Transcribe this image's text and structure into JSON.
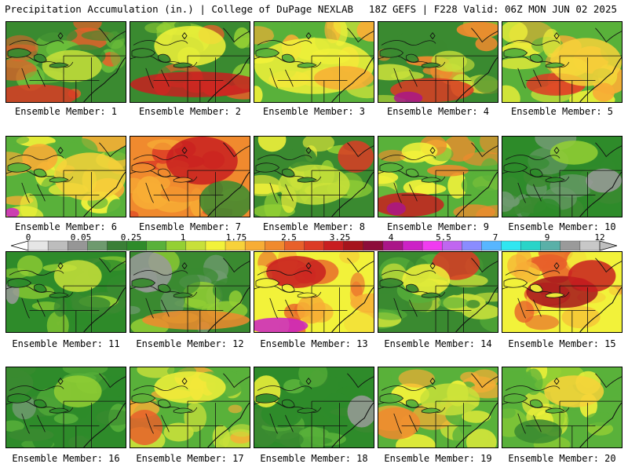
{
  "header": {
    "title": "Precipitation Accumulation (in.) | College of DuPage NEXLAB",
    "run_info": "18Z GEFS | F228 Valid: 06Z MON JUN 02 2025"
  },
  "colorbar": {
    "tick_labels": [
      "0",
      "0.05",
      "0.25",
      "1",
      "1.75",
      "2.5",
      "3.25",
      "4",
      "5.5",
      "7",
      "9",
      "12"
    ],
    "colors": [
      "#e6e6e6",
      "#bdbdbd",
      "#969696",
      "#6e9a6e",
      "#3a7f36",
      "#2e8b2a",
      "#59b13a",
      "#94d034",
      "#c8e03a",
      "#f2f23a",
      "#f7d23a",
      "#f7ad35",
      "#f08a2e",
      "#e8602a",
      "#dc3b25",
      "#c81e20",
      "#a6141c",
      "#8c0d3a",
      "#aa1688",
      "#cc22c6",
      "#f03cf0",
      "#c066f0",
      "#8a8cff",
      "#58b6ff",
      "#30e6f0",
      "#2ad4c8",
      "#5ab0a8",
      "#9a9a9a",
      "#c8c8c8"
    ]
  },
  "panels": [
    {
      "label": "Ensemble Member: 1",
      "palette": [
        "#3a8a30",
        "#6cbf3a",
        "#e8602a"
      ],
      "blobs": [
        [
          0.25,
          0.92,
          0.35,
          0.14,
          "#dc3b25"
        ],
        [
          0.55,
          0.55,
          0.25,
          0.2,
          "#c8e03a"
        ]
      ]
    },
    {
      "label": "Ensemble Member: 2",
      "palette": [
        "#3a8a30",
        "#94d034",
        "#e8602a"
      ],
      "blobs": [
        [
          0.55,
          0.78,
          0.55,
          0.16,
          "#c81e20"
        ],
        [
          0.5,
          0.3,
          0.3,
          0.25,
          "#f2f23a"
        ]
      ]
    },
    {
      "label": "Ensemble Member: 3",
      "palette": [
        "#59b13a",
        "#f2f23a",
        "#f7ad35"
      ],
      "blobs": [
        [
          0.5,
          0.55,
          0.5,
          0.35,
          "#f2f23a"
        ],
        [
          0.75,
          0.7,
          0.25,
          0.15,
          "#f7ad35"
        ]
      ]
    },
    {
      "label": "Ensemble Member: 4",
      "palette": [
        "#3a8a30",
        "#c8e03a",
        "#f08a2e"
      ],
      "blobs": [
        [
          0.45,
          0.85,
          0.35,
          0.15,
          "#dc3b25"
        ],
        [
          0.25,
          0.95,
          0.12,
          0.08,
          "#aa1688"
        ]
      ]
    },
    {
      "label": "Ensemble Member: 5",
      "palette": [
        "#59b13a",
        "#f2f23a",
        "#f7ad35"
      ],
      "blobs": [
        [
          0.45,
          0.78,
          0.25,
          0.14,
          "#dc3b25"
        ],
        [
          0.7,
          0.5,
          0.3,
          0.3,
          "#f7d23a"
        ]
      ]
    },
    {
      "label": "Ensemble Member: 6",
      "palette": [
        "#59b13a",
        "#f2f23a",
        "#f7ad35"
      ],
      "blobs": [
        [
          0.7,
          0.5,
          0.3,
          0.3,
          "#f7d23a"
        ],
        [
          0.05,
          0.95,
          0.06,
          0.06,
          "#cc22c6"
        ]
      ]
    },
    {
      "label": "Ensemble Member: 7",
      "palette": [
        "#f08a2e",
        "#f7ad35",
        "#dc3b25"
      ],
      "blobs": [
        [
          0.6,
          0.3,
          0.3,
          0.3,
          "#c81e20"
        ],
        [
          0.8,
          0.8,
          0.22,
          0.25,
          "#3a8a30"
        ]
      ]
    },
    {
      "label": "Ensemble Member: 8",
      "palette": [
        "#3a8a30",
        "#94d034",
        "#f2f23a"
      ],
      "blobs": [
        [
          0.85,
          0.25,
          0.15,
          0.2,
          "#dc3b25"
        ],
        [
          0.5,
          0.6,
          0.3,
          0.25,
          "#c8e03a"
        ]
      ]
    },
    {
      "label": "Ensemble Member: 9",
      "palette": [
        "#59b13a",
        "#f2f23a",
        "#f08a2e"
      ],
      "blobs": [
        [
          0.25,
          0.85,
          0.3,
          0.15,
          "#c81e20"
        ],
        [
          0.15,
          0.9,
          0.08,
          0.08,
          "#aa1688"
        ]
      ]
    },
    {
      "label": "Ensemble Member: 10",
      "palette": [
        "#2e8b2a",
        "#3a8a30",
        "#6e9a6e"
      ],
      "blobs": [
        [
          0.85,
          0.55,
          0.15,
          0.15,
          "#9a9a9a"
        ],
        [
          0.6,
          0.2,
          0.2,
          0.15,
          "#94d034"
        ]
      ]
    },
    {
      "label": "Ensemble Member: 11",
      "palette": [
        "#2e8b2a",
        "#3a8a30",
        "#94d034"
      ],
      "blobs": [
        [
          0.05,
          0.5,
          0.06,
          0.15,
          "#9a9a9a"
        ],
        [
          0.6,
          0.3,
          0.2,
          0.2,
          "#c8e03a"
        ]
      ]
    },
    {
      "label": "Ensemble Member: 12",
      "palette": [
        "#3a8a30",
        "#6e9a6e",
        "#94d034"
      ],
      "blobs": [
        [
          0.15,
          0.25,
          0.2,
          0.25,
          "#9a9a9a"
        ],
        [
          0.55,
          0.85,
          0.45,
          0.12,
          "#f08a2e"
        ]
      ]
    },
    {
      "label": "Ensemble Member: 13",
      "palette": [
        "#f2f23a",
        "#f7ad35",
        "#e8602a"
      ],
      "blobs": [
        [
          0.35,
          0.25,
          0.25,
          0.2,
          "#c81e20"
        ],
        [
          0.2,
          0.92,
          0.25,
          0.1,
          "#cc22c6"
        ]
      ]
    },
    {
      "label": "Ensemble Member: 14",
      "palette": [
        "#3a8a30",
        "#59b13a",
        "#c8e03a"
      ],
      "blobs": [
        [
          0.65,
          0.15,
          0.2,
          0.2,
          "#dc3b25"
        ],
        [
          0.4,
          0.35,
          0.2,
          0.2,
          "#f2f23a"
        ]
      ]
    },
    {
      "label": "Ensemble Member: 15",
      "palette": [
        "#f2f23a",
        "#f7ad35",
        "#e8602a"
      ],
      "blobs": [
        [
          0.5,
          0.5,
          0.3,
          0.2,
          "#a6141c"
        ],
        [
          0.75,
          0.3,
          0.2,
          0.2,
          "#c81e20"
        ]
      ]
    },
    {
      "label": "Ensemble Member: 16",
      "palette": [
        "#2e8b2a",
        "#3a8a30",
        "#59b13a"
      ],
      "blobs": [
        [
          0.15,
          0.5,
          0.1,
          0.15,
          "#6e9a6e"
        ],
        [
          0.6,
          0.3,
          0.2,
          0.2,
          "#94d034"
        ]
      ]
    },
    {
      "label": "Ensemble Member: 17",
      "palette": [
        "#59b13a",
        "#c8e03a",
        "#f7ad35"
      ],
      "blobs": [
        [
          0.12,
          0.75,
          0.15,
          0.22,
          "#e8602a"
        ],
        [
          0.5,
          0.25,
          0.3,
          0.2,
          "#f2f23a"
        ]
      ]
    },
    {
      "label": "Ensemble Member: 18",
      "palette": [
        "#2e8b2a",
        "#3a8a30",
        "#59b13a"
      ],
      "blobs": [
        [
          0.9,
          0.55,
          0.12,
          0.2,
          "#9a9a9a"
        ],
        [
          0.1,
          0.3,
          0.12,
          0.2,
          "#f2f23a"
        ]
      ]
    },
    {
      "label": "Ensemble Member: 19",
      "palette": [
        "#59b13a",
        "#f2f23a",
        "#f7ad35"
      ],
      "blobs": [
        [
          0.15,
          0.7,
          0.2,
          0.2,
          "#f08a2e"
        ],
        [
          0.6,
          0.4,
          0.25,
          0.2,
          "#c8e03a"
        ]
      ]
    },
    {
      "label": "Ensemble Member: 20",
      "palette": [
        "#59b13a",
        "#94d034",
        "#f2f23a"
      ],
      "blobs": [
        [
          0.6,
          0.3,
          0.25,
          0.2,
          "#f7d23a"
        ],
        [
          0.3,
          0.8,
          0.2,
          0.15,
          "#3a8a30"
        ]
      ]
    }
  ]
}
